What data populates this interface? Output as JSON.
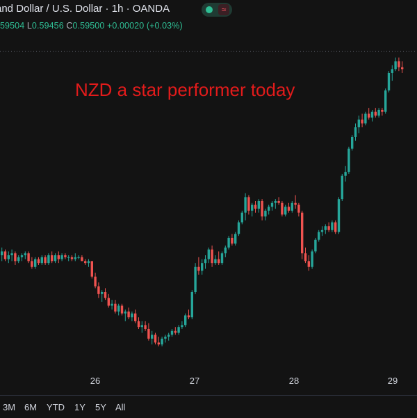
{
  "header": {
    "title": "and Dollar / U.S. Dollar · 1h · OANDA",
    "badge_glyph": "≈",
    "ohlc": {
      "open_value": "59504",
      "low_label": "L",
      "low_value": "0.59456",
      "close_label": "C",
      "close_value": "0.59500",
      "change": "+0.00020 (+0.03%)"
    }
  },
  "annotation": "NZD a star performer today",
  "colors": {
    "up": "#26a69a",
    "down": "#ef5350",
    "background": "#131313",
    "annotation": "#e21b1b"
  },
  "time_ranges": [
    "3M",
    "6M",
    "YTD",
    "1Y",
    "5Y",
    "All"
  ],
  "chart_data": {
    "type": "candlestick",
    "x_ticks": [
      "26",
      "27",
      "28",
      "29"
    ],
    "current_price": 0.595,
    "candles": [
      [
        0.5922,
        0.5926,
        0.5919,
        0.5924
      ],
      [
        0.5924,
        0.5925,
        0.5919,
        0.592
      ],
      [
        0.592,
        0.5924,
        0.5918,
        0.5922
      ],
      [
        0.5922,
        0.5925,
        0.5919,
        0.5923
      ],
      [
        0.5923,
        0.5924,
        0.5917,
        0.5919
      ],
      [
        0.5919,
        0.5922,
        0.5918,
        0.5921
      ],
      [
        0.5921,
        0.5923,
        0.5919,
        0.5922
      ],
      [
        0.5922,
        0.5924,
        0.592,
        0.5923
      ],
      [
        0.5923,
        0.5924,
        0.5918,
        0.5919
      ],
      [
        0.5919,
        0.5921,
        0.5915,
        0.5916
      ],
      [
        0.5916,
        0.5921,
        0.5915,
        0.592
      ],
      [
        0.592,
        0.5921,
        0.5917,
        0.5918
      ],
      [
        0.5918,
        0.5922,
        0.5917,
        0.5921
      ],
      [
        0.5921,
        0.5922,
        0.5917,
        0.5918
      ],
      [
        0.5918,
        0.5923,
        0.5917,
        0.5922
      ],
      [
        0.5922,
        0.5924,
        0.5918,
        0.5919
      ],
      [
        0.5919,
        0.5923,
        0.5918,
        0.5922
      ],
      [
        0.5922,
        0.5924,
        0.5918,
        0.592
      ],
      [
        0.592,
        0.5923,
        0.5919,
        0.5922
      ],
      [
        0.5922,
        0.5923,
        0.592,
        0.5921
      ],
      [
        0.5921,
        0.5922,
        0.5919,
        0.5921
      ],
      [
        0.5921,
        0.5922,
        0.5919,
        0.592
      ],
      [
        0.592,
        0.5923,
        0.5919,
        0.5921
      ],
      [
        0.5921,
        0.5922,
        0.592,
        0.5921
      ],
      [
        0.5921,
        0.5922,
        0.5919,
        0.5919
      ],
      [
        0.5919,
        0.592,
        0.5917,
        0.5918
      ],
      [
        0.5918,
        0.592,
        0.5916,
        0.5919
      ],
      [
        0.5919,
        0.5919,
        0.591,
        0.5911
      ],
      [
        0.5911,
        0.5913,
        0.5905,
        0.5906
      ],
      [
        0.5906,
        0.5908,
        0.59,
        0.5902
      ],
      [
        0.5902,
        0.5904,
        0.5898,
        0.5903
      ],
      [
        0.5903,
        0.5905,
        0.5899,
        0.59
      ],
      [
        0.59,
        0.5902,
        0.5895,
        0.5896
      ],
      [
        0.5896,
        0.5899,
        0.5894,
        0.5897
      ],
      [
        0.5897,
        0.5899,
        0.5892,
        0.5893
      ],
      [
        0.5893,
        0.5897,
        0.5891,
        0.5896
      ],
      [
        0.5896,
        0.5897,
        0.5891,
        0.5892
      ],
      [
        0.5892,
        0.5894,
        0.5888,
        0.5893
      ],
      [
        0.5893,
        0.5895,
        0.5889,
        0.589
      ],
      [
        0.589,
        0.5893,
        0.5888,
        0.5892
      ],
      [
        0.5892,
        0.5894,
        0.5887,
        0.5888
      ],
      [
        0.5888,
        0.589,
        0.5884,
        0.5885
      ],
      [
        0.5885,
        0.5888,
        0.5882,
        0.5886
      ],
      [
        0.5886,
        0.5888,
        0.5883,
        0.5884
      ],
      [
        0.5884,
        0.5887,
        0.5878,
        0.5879
      ],
      [
        0.5879,
        0.5883,
        0.5876,
        0.5881
      ],
      [
        0.5881,
        0.5882,
        0.5876,
        0.5877
      ],
      [
        0.5877,
        0.588,
        0.5875,
        0.5876
      ],
      [
        0.5876,
        0.588,
        0.5875,
        0.5879
      ],
      [
        0.5879,
        0.5881,
        0.5877,
        0.588
      ],
      [
        0.588,
        0.5882,
        0.5878,
        0.5881
      ],
      [
        0.5881,
        0.5884,
        0.588,
        0.5883
      ],
      [
        0.5883,
        0.5885,
        0.5881,
        0.5882
      ],
      [
        0.5882,
        0.5886,
        0.5881,
        0.5885
      ],
      [
        0.5885,
        0.5888,
        0.5884,
        0.5886
      ],
      [
        0.5886,
        0.5892,
        0.5885,
        0.5891
      ],
      [
        0.5891,
        0.5894,
        0.5889,
        0.589
      ],
      [
        0.589,
        0.5904,
        0.5889,
        0.5903
      ],
      [
        0.5903,
        0.5918,
        0.5902,
        0.5916
      ],
      [
        0.5916,
        0.5921,
        0.5912,
        0.5914
      ],
      [
        0.5914,
        0.592,
        0.5912,
        0.5918
      ],
      [
        0.5918,
        0.5922,
        0.5915,
        0.592
      ],
      [
        0.592,
        0.5926,
        0.5918,
        0.5925
      ],
      [
        0.5925,
        0.5927,
        0.5916,
        0.5918
      ],
      [
        0.5918,
        0.5922,
        0.5917,
        0.592
      ],
      [
        0.592,
        0.5924,
        0.5917,
        0.5918
      ],
      [
        0.5918,
        0.5924,
        0.5917,
        0.5923
      ],
      [
        0.5923,
        0.5927,
        0.5921,
        0.5926
      ],
      [
        0.5926,
        0.5932,
        0.5925,
        0.5931
      ],
      [
        0.5931,
        0.5933,
        0.5927,
        0.5928
      ],
      [
        0.5928,
        0.5934,
        0.5927,
        0.5933
      ],
      [
        0.5933,
        0.594,
        0.5932,
        0.5939
      ],
      [
        0.5939,
        0.5945,
        0.5938,
        0.5944
      ],
      [
        0.5944,
        0.5954,
        0.594,
        0.5952
      ],
      [
        0.5952,
        0.5953,
        0.5943,
        0.5945
      ],
      [
        0.5945,
        0.5949,
        0.5942,
        0.5948
      ],
      [
        0.5948,
        0.595,
        0.5944,
        0.5946
      ],
      [
        0.5946,
        0.5951,
        0.5944,
        0.595
      ],
      [
        0.595,
        0.5951,
        0.594,
        0.5942
      ],
      [
        0.5942,
        0.5946,
        0.594,
        0.5945
      ],
      [
        0.5945,
        0.5948,
        0.5943,
        0.5947
      ],
      [
        0.5947,
        0.595,
        0.5945,
        0.5949
      ],
      [
        0.5949,
        0.5951,
        0.5946,
        0.595
      ],
      [
        0.595,
        0.5952,
        0.5948,
        0.5949
      ],
      [
        0.5949,
        0.595,
        0.5942,
        0.5943
      ],
      [
        0.5943,
        0.5948,
        0.5942,
        0.5947
      ],
      [
        0.5947,
        0.5949,
        0.5944,
        0.5945
      ],
      [
        0.5945,
        0.595,
        0.5944,
        0.5949
      ],
      [
        0.5949,
        0.5953,
        0.5946,
        0.5948
      ],
      [
        0.5948,
        0.5949,
        0.5942,
        0.5944
      ],
      [
        0.5944,
        0.5945,
        0.592,
        0.5923
      ],
      [
        0.5923,
        0.5926,
        0.5918,
        0.5919
      ],
      [
        0.5919,
        0.5922,
        0.5914,
        0.5916
      ],
      [
        0.5916,
        0.5925,
        0.5915,
        0.5924
      ],
      [
        0.5924,
        0.5931,
        0.5923,
        0.593
      ],
      [
        0.593,
        0.5935,
        0.5929,
        0.5934
      ],
      [
        0.5934,
        0.5937,
        0.5932,
        0.5935
      ],
      [
        0.5935,
        0.5938,
        0.5933,
        0.5937
      ],
      [
        0.5937,
        0.5939,
        0.5934,
        0.5935
      ],
      [
        0.5935,
        0.594,
        0.5934,
        0.5939
      ],
      [
        0.5939,
        0.594,
        0.5933,
        0.5934
      ],
      [
        0.5934,
        0.5952,
        0.5933,
        0.5951
      ],
      [
        0.5951,
        0.5964,
        0.595,
        0.5963
      ],
      [
        0.5963,
        0.5968,
        0.596,
        0.5965
      ],
      [
        0.5965,
        0.5978,
        0.5964,
        0.5977
      ],
      [
        0.5977,
        0.5984,
        0.5976,
        0.5983
      ],
      [
        0.5983,
        0.599,
        0.5981,
        0.5988
      ],
      [
        0.5988,
        0.5994,
        0.5985,
        0.5992
      ],
      [
        0.5992,
        0.5995,
        0.5988,
        0.599
      ],
      [
        0.599,
        0.5996,
        0.5989,
        0.5995
      ],
      [
        0.5995,
        0.5998,
        0.5992,
        0.5993
      ],
      [
        0.5993,
        0.5997,
        0.5991,
        0.5996
      ],
      [
        0.5996,
        0.5998,
        0.5993,
        0.5994
      ],
      [
        0.5994,
        0.5998,
        0.5993,
        0.5997
      ],
      [
        0.5997,
        0.5998,
        0.5994,
        0.5996
      ],
      [
        0.5996,
        0.6008,
        0.5995,
        0.6007
      ],
      [
        0.6007,
        0.6017,
        0.6006,
        0.6016
      ],
      [
        0.6016,
        0.602,
        0.6012,
        0.6018
      ],
      [
        0.6018,
        0.6024,
        0.6017,
        0.6022
      ],
      [
        0.6022,
        0.6024,
        0.6017,
        0.6019
      ],
      [
        0.6019,
        0.6022,
        0.6016,
        0.6018
      ]
    ]
  }
}
